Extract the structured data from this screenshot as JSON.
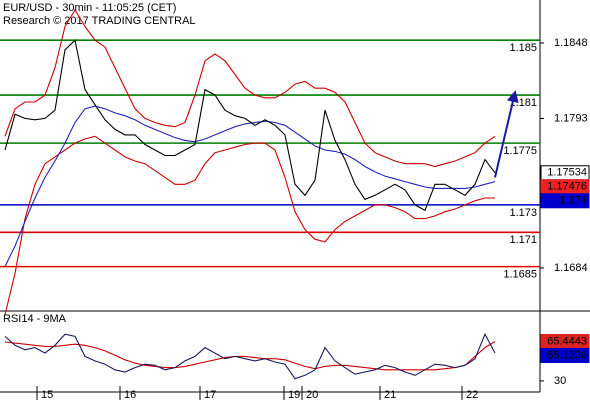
{
  "chart_data": [
    {
      "type": "line",
      "title": "EUR/USD - 30min - 11:05:25 (CET)",
      "subtitle": "Research © 2017 TRADING CENTRAL",
      "x": [
        0,
        1,
        2,
        3,
        4,
        5,
        6,
        7,
        8,
        9,
        10,
        11,
        12,
        13,
        14,
        15,
        16,
        17,
        18,
        19,
        20,
        21,
        22,
        23,
        24,
        25,
        26,
        27,
        28,
        29,
        30,
        31,
        32,
        33,
        34,
        35,
        36,
        37,
        38,
        39,
        40,
        41,
        42,
        43,
        44,
        45,
        46,
        47,
        48,
        49
      ],
      "xlim": [
        -0.5,
        53.5
      ],
      "ylim": [
        1.16534,
        1.18793
      ],
      "yticks": [
        1.1848,
        1.1793,
        1.1684
      ],
      "series": [
        {
          "color": "#cc0000",
          "values": [
            1.178,
            1.18,
            1.1805,
            1.1805,
            1.181,
            1.183,
            1.186,
            1.1872,
            1.186,
            1.185,
            1.1845,
            1.183,
            1.1815,
            1.18,
            1.1793,
            1.179,
            1.1788,
            1.1787,
            1.179,
            1.181,
            1.1835,
            1.184,
            1.1835,
            1.1825,
            1.1815,
            1.181,
            1.1808,
            1.1808,
            1.1812,
            1.1818,
            1.182,
            1.1815,
            1.1815,
            1.1812,
            1.1805,
            1.179,
            1.1775,
            1.1768,
            1.1765,
            1.1762,
            1.176,
            1.176,
            1.176,
            1.1758,
            1.176,
            1.1762,
            1.1765,
            1.1768,
            1.1775,
            1.178
          ]
        },
        {
          "color": "#cc0000",
          "values": [
            1.165,
            1.168,
            1.172,
            1.1745,
            1.176,
            1.1765,
            1.177,
            1.1775,
            1.1778,
            1.178,
            1.1775,
            1.177,
            1.1765,
            1.1762,
            1.176,
            1.1755,
            1.175,
            1.1745,
            1.1745,
            1.1748,
            1.176,
            1.1768,
            1.177,
            1.1772,
            1.1774,
            1.1775,
            1.1775,
            1.177,
            1.175,
            1.1725,
            1.1712,
            1.1705,
            1.1703,
            1.1712,
            1.1718,
            1.1722,
            1.1726,
            1.173,
            1.173,
            1.1728,
            1.1725,
            1.172,
            1.172,
            1.1722,
            1.1725,
            1.1727,
            1.173,
            1.1733,
            1.1735,
            1.1735
          ]
        },
        {
          "color": "#2222bb",
          "values": [
            1.1685,
            1.17,
            1.1718,
            1.1735,
            1.175,
            1.1762,
            1.1775,
            1.179,
            1.18,
            1.1802,
            1.18,
            1.1797,
            1.1795,
            1.1792,
            1.1788,
            1.1785,
            1.1782,
            1.1779,
            1.1777,
            1.1776,
            1.1778,
            1.1781,
            1.1784,
            1.1787,
            1.1789,
            1.179,
            1.1791,
            1.179,
            1.1788,
            1.1783,
            1.1778,
            1.1773,
            1.177,
            1.1769,
            1.1767,
            1.1763,
            1.1758,
            1.1754,
            1.1751,
            1.1749,
            1.1747,
            1.1745,
            1.1743,
            1.1742,
            1.1742,
            1.1742,
            1.1742,
            1.1743,
            1.1745,
            1.1747
          ]
        },
        {
          "color": "#000000",
          "values": [
            1.177,
            1.1796,
            1.1793,
            1.1792,
            1.1793,
            1.1799,
            1.1843,
            1.185,
            1.1814,
            1.1803,
            1.1792,
            1.1785,
            1.1781,
            1.1781,
            1.1774,
            1.177,
            1.1766,
            1.1766,
            1.177,
            1.1774,
            1.1814,
            1.181,
            1.1799,
            1.1795,
            1.1793,
            1.1788,
            1.1792,
            1.1788,
            1.1781,
            1.1745,
            1.1737,
            1.1748,
            1.1799,
            1.1777,
            1.1763,
            1.1745,
            1.1734,
            1.1737,
            1.1741,
            1.1745,
            1.1741,
            1.173,
            1.1726,
            1.1745,
            1.1745,
            1.1741,
            1.1737,
            1.1745,
            1.1763,
            1.17534
          ]
        }
      ],
      "levels": [
        {
          "value": 1.185,
          "color": "#008000"
        },
        {
          "value": 1.181,
          "color": "#008000"
        },
        {
          "value": 1.1775,
          "color": "#008000"
        },
        {
          "value": 1.173,
          "color": "#0000cc"
        },
        {
          "value": 1.171,
          "color": "#dd0000"
        },
        {
          "value": 1.1685,
          "color": "#dd0000"
        }
      ],
      "forecast": {
        "color": "#1a1a9c",
        "x": [
          49,
          51
        ],
        "values": [
          1.175,
          1.1812
        ]
      },
      "markers": [
        {
          "value": 1.17534,
          "color": "#ffffff",
          "text_color": "#000000"
        },
        {
          "value": 1.17476,
          "color": "#ee2222",
          "text_color": "#000000"
        },
        {
          "value": 1.174,
          "color": "#0000cc",
          "text_color": "#ffffff"
        }
      ]
    },
    {
      "type": "line",
      "title": "RSI14 - 9MA",
      "x": [
        0,
        1,
        2,
        3,
        4,
        5,
        6,
        7,
        8,
        9,
        10,
        11,
        12,
        13,
        14,
        15,
        16,
        17,
        18,
        19,
        20,
        21,
        22,
        23,
        24,
        25,
        26,
        27,
        28,
        29,
        30,
        31,
        32,
        33,
        34,
        35,
        36,
        37,
        38,
        39,
        40,
        41,
        42,
        43,
        44,
        45,
        46,
        47,
        48,
        49
      ],
      "xlim": [
        -0.5,
        53.5
      ],
      "ylim": [
        20,
        92
      ],
      "yticks": [
        30
      ],
      "xticks": [
        {
          "value": 3.2,
          "label": "15"
        },
        {
          "value": 11.5,
          "label": "16"
        },
        {
          "value": 19.5,
          "label": "17"
        },
        {
          "value": 27.9,
          "label": "19"
        },
        {
          "value": 29.7,
          "label": "20"
        },
        {
          "value": 37.5,
          "label": "21"
        },
        {
          "value": 45.7,
          "label": "22"
        }
      ],
      "series": [
        {
          "color": "#cc0000",
          "values": [
            65,
            64,
            63,
            62,
            61,
            61,
            62,
            63,
            62,
            60,
            57,
            53,
            49,
            46,
            44,
            43,
            42,
            42,
            43,
            45,
            47,
            49,
            51,
            52,
            52,
            51,
            50,
            50,
            49,
            46,
            43,
            41,
            43,
            44,
            44,
            43,
            42,
            41,
            40,
            40,
            40,
            40,
            40,
            40,
            41,
            42,
            44,
            52,
            60,
            65.4443
          ]
        },
        {
          "color": "#1a1a5c",
          "values": [
            70,
            62,
            58,
            60,
            55,
            62,
            72,
            70,
            52,
            48,
            45,
            40,
            38,
            42,
            45,
            44,
            40,
            42,
            48,
            52,
            60,
            55,
            50,
            52,
            50,
            48,
            50,
            47,
            45,
            32,
            35,
            40,
            60,
            48,
            42,
            36,
            38,
            40,
            44,
            42,
            38,
            35,
            40,
            45,
            44,
            42,
            44,
            50,
            72,
            55.1236
          ]
        }
      ],
      "markers": [
        {
          "value": 65.4443,
          "color": "#dd2222",
          "text_color": "#ffffff"
        },
        {
          "value": 55.1236,
          "color": "#0000cc",
          "text_color": "#ffffff"
        }
      ]
    }
  ]
}
